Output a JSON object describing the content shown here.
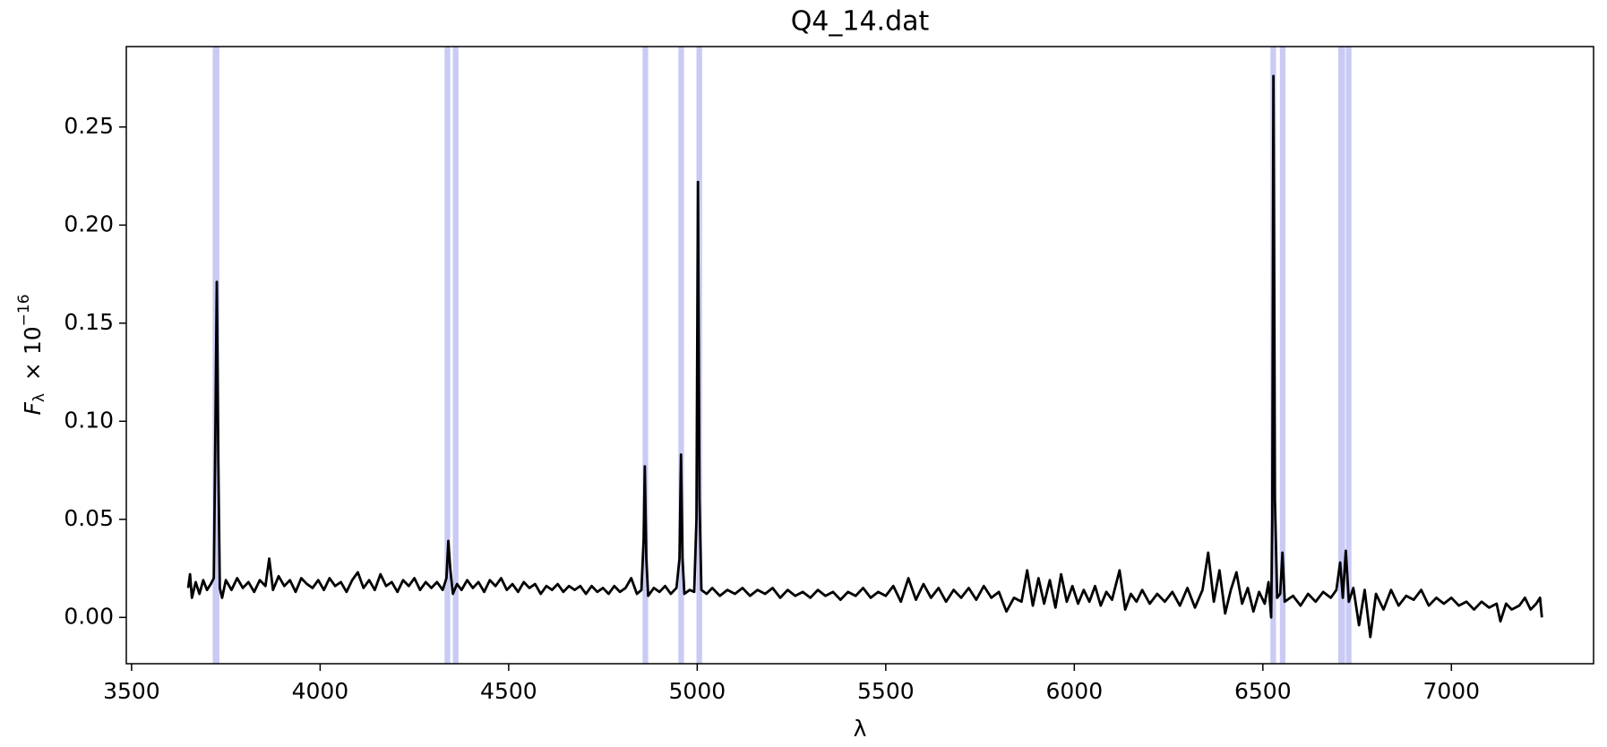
{
  "chart_data": {
    "type": "line",
    "title": "Q4_14.dat",
    "xlabel": "λ",
    "ylabel": {
      "symbol": "F",
      "sub": "λ",
      "factor": "× 10",
      "exp": "−16"
    },
    "xlim": [
      3486,
      7377
    ],
    "ylim": [
      -0.0236,
      0.291
    ],
    "xticks": [
      3500,
      4000,
      4500,
      5000,
      5500,
      6000,
      6500,
      7000
    ],
    "yticks": [
      {
        "value": 0,
        "label": "0.00"
      },
      {
        "value": 0.05,
        "label": "0.05"
      },
      {
        "value": 0.1,
        "label": "0.10"
      },
      {
        "value": 0.15,
        "label": "0.15"
      },
      {
        "value": 0.2,
        "label": "0.20"
      },
      {
        "value": 0.25,
        "label": "0.25"
      }
    ],
    "spans": {
      "color": "#c9cbf5",
      "ranges": [
        [
          3715,
          3733
        ],
        [
          4330,
          4345
        ],
        [
          4352,
          4367
        ],
        [
          4855,
          4870
        ],
        [
          4950,
          4965
        ],
        [
          4998,
          5013
        ],
        [
          6520,
          6535
        ],
        [
          6545,
          6560
        ],
        [
          6700,
          6718
        ],
        [
          6720,
          6735
        ]
      ]
    },
    "x": [
      3650,
      3655,
      3660,
      3670,
      3680,
      3690,
      3700,
      3710,
      3718,
      3722,
      3726,
      3730,
      3734,
      3740,
      3750,
      3765,
      3780,
      3795,
      3810,
      3825,
      3840,
      3855,
      3865,
      3875,
      3890,
      3905,
      3920,
      3935,
      3950,
      3965,
      3980,
      3995,
      4010,
      4025,
      4040,
      4055,
      4070,
      4085,
      4100,
      4115,
      4130,
      4145,
      4160,
      4175,
      4190,
      4205,
      4220,
      4235,
      4250,
      4265,
      4280,
      4295,
      4310,
      4325,
      4335,
      4340,
      4345,
      4352,
      4363,
      4375,
      4390,
      4405,
      4420,
      4435,
      4450,
      4465,
      4480,
      4495,
      4510,
      4525,
      4540,
      4555,
      4570,
      4585,
      4600,
      4615,
      4630,
      4645,
      4660,
      4675,
      4690,
      4705,
      4720,
      4735,
      4750,
      4765,
      4780,
      4795,
      4810,
      4825,
      4840,
      4852,
      4858,
      4861,
      4865,
      4870,
      4885,
      4900,
      4915,
      4930,
      4945,
      4953,
      4957,
      4961,
      4966,
      4980,
      4992,
      4998,
      5002,
      5006,
      5011,
      5025,
      5040,
      5060,
      5080,
      5100,
      5120,
      5140,
      5160,
      5180,
      5200,
      5220,
      5240,
      5260,
      5280,
      5300,
      5320,
      5340,
      5360,
      5380,
      5400,
      5420,
      5440,
      5460,
      5480,
      5500,
      5520,
      5540,
      5560,
      5580,
      5600,
      5620,
      5640,
      5660,
      5680,
      5700,
      5720,
      5740,
      5760,
      5780,
      5800,
      5820,
      5840,
      5860,
      5875,
      5890,
      5905,
      5920,
      5935,
      5950,
      5965,
      5980,
      5995,
      6010,
      6025,
      6040,
      6055,
      6070,
      6085,
      6100,
      6120,
      6135,
      6150,
      6165,
      6180,
      6200,
      6220,
      6240,
      6260,
      6280,
      6300,
      6320,
      6340,
      6355,
      6370,
      6385,
      6400,
      6415,
      6430,
      6445,
      6460,
      6475,
      6490,
      6505,
      6515,
      6522,
      6525,
      6528,
      6532,
      6538,
      6546,
      6552,
      6558,
      6580,
      6600,
      6620,
      6640,
      6660,
      6680,
      6695,
      6705,
      6712,
      6720,
      6728,
      6740,
      6755,
      6770,
      6785,
      6800,
      6820,
      6840,
      6860,
      6880,
      6900,
      6920,
      6940,
      6960,
      6980,
      7000,
      7020,
      7040,
      7060,
      7080,
      7100,
      7120,
      7130,
      7145,
      7160,
      7180,
      7195,
      7210,
      7225,
      7235,
      7240
    ],
    "series": [
      {
        "color": "#000000",
        "values": [
          0.015,
          0.022,
          0.01,
          0.018,
          0.012,
          0.019,
          0.014,
          0.017,
          0.02,
          0.09,
          0.171,
          0.08,
          0.015,
          0.01,
          0.019,
          0.014,
          0.02,
          0.015,
          0.018,
          0.013,
          0.019,
          0.016,
          0.03,
          0.014,
          0.021,
          0.016,
          0.019,
          0.013,
          0.02,
          0.017,
          0.015,
          0.019,
          0.014,
          0.02,
          0.016,
          0.018,
          0.013,
          0.019,
          0.023,
          0.015,
          0.019,
          0.014,
          0.022,
          0.016,
          0.018,
          0.013,
          0.019,
          0.016,
          0.02,
          0.014,
          0.018,
          0.015,
          0.018,
          0.014,
          0.02,
          0.039,
          0.025,
          0.012,
          0.017,
          0.014,
          0.019,
          0.015,
          0.018,
          0.013,
          0.019,
          0.016,
          0.02,
          0.014,
          0.017,
          0.013,
          0.018,
          0.015,
          0.017,
          0.012,
          0.016,
          0.014,
          0.017,
          0.013,
          0.016,
          0.014,
          0.016,
          0.012,
          0.016,
          0.013,
          0.015,
          0.012,
          0.016,
          0.013,
          0.015,
          0.02,
          0.012,
          0.014,
          0.04,
          0.077,
          0.03,
          0.011,
          0.015,
          0.013,
          0.016,
          0.012,
          0.015,
          0.03,
          0.083,
          0.03,
          0.012,
          0.014,
          0.013,
          0.05,
          0.222,
          0.06,
          0.014,
          0.012,
          0.015,
          0.011,
          0.014,
          0.012,
          0.015,
          0.011,
          0.014,
          0.012,
          0.015,
          0.01,
          0.014,
          0.011,
          0.013,
          0.01,
          0.014,
          0.011,
          0.013,
          0.009,
          0.013,
          0.011,
          0.015,
          0.01,
          0.013,
          0.011,
          0.016,
          0.008,
          0.02,
          0.009,
          0.017,
          0.01,
          0.015,
          0.008,
          0.014,
          0.01,
          0.015,
          0.009,
          0.016,
          0.01,
          0.013,
          0.003,
          0.01,
          0.008,
          0.024,
          0.006,
          0.02,
          0.007,
          0.019,
          0.005,
          0.022,
          0.008,
          0.016,
          0.007,
          0.014,
          0.008,
          0.016,
          0.006,
          0.013,
          0.009,
          0.024,
          0.004,
          0.012,
          0.008,
          0.014,
          0.007,
          0.012,
          0.008,
          0.013,
          0.006,
          0.015,
          0.005,
          0.014,
          0.033,
          0.008,
          0.024,
          0.002,
          0.014,
          0.023,
          0.007,
          0.015,
          0.003,
          0.013,
          0.007,
          0.018,
          0.0,
          0.05,
          0.276,
          0.06,
          0.01,
          0.012,
          0.033,
          0.008,
          0.011,
          0.006,
          0.012,
          0.008,
          0.013,
          0.01,
          0.014,
          0.028,
          0.01,
          0.034,
          0.008,
          0.015,
          -0.004,
          0.014,
          -0.01,
          0.012,
          0.004,
          0.014,
          0.006,
          0.011,
          0.009,
          0.014,
          0.006,
          0.01,
          0.007,
          0.01,
          0.006,
          0.008,
          0.004,
          0.008,
          0.005,
          0.007,
          -0.002,
          0.007,
          0.004,
          0.006,
          0.01,
          0.004,
          0.007,
          0.01,
          0.0
        ]
      }
    ]
  }
}
